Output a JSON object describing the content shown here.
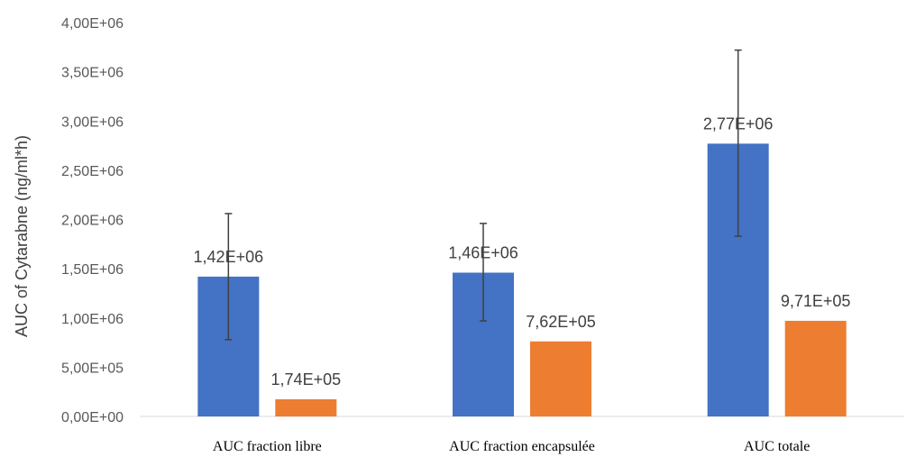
{
  "chart_data": {
    "type": "bar",
    "title": "",
    "ylabel": "AUC of Cytarabne (ng/ml*h)",
    "xlabel": "",
    "ylim": [
      0,
      4000000
    ],
    "yticks": [
      0,
      500000,
      1000000,
      1500000,
      2000000,
      2500000,
      3000000,
      3500000,
      4000000
    ],
    "ytick_labels": [
      "0,00E+00",
      "5,00E+05",
      "1,00E+06",
      "1,50E+06",
      "2,00E+06",
      "2,50E+06",
      "3,00E+06",
      "3,50E+06",
      "4,00E+06"
    ],
    "categories": [
      "AUC fraction libre",
      "AUC fraction encapsulée",
      "AUC totale"
    ],
    "grid": false,
    "legend": "none",
    "series": [
      {
        "color": "#4472C4",
        "values": [
          1420000,
          1460000,
          2770000
        ],
        "labels": [
          "1,42E+06",
          "1,46E+06",
          "2,77E+06"
        ],
        "error_low": [
          780000,
          970000,
          1830000
        ],
        "error_high": [
          2060000,
          1960000,
          3720000
        ]
      },
      {
        "color": "#ED7D31",
        "values": [
          174000,
          762000,
          971000
        ],
        "labels": [
          "1,74E+05",
          "7,62E+05",
          "9,71E+05"
        ]
      }
    ]
  }
}
